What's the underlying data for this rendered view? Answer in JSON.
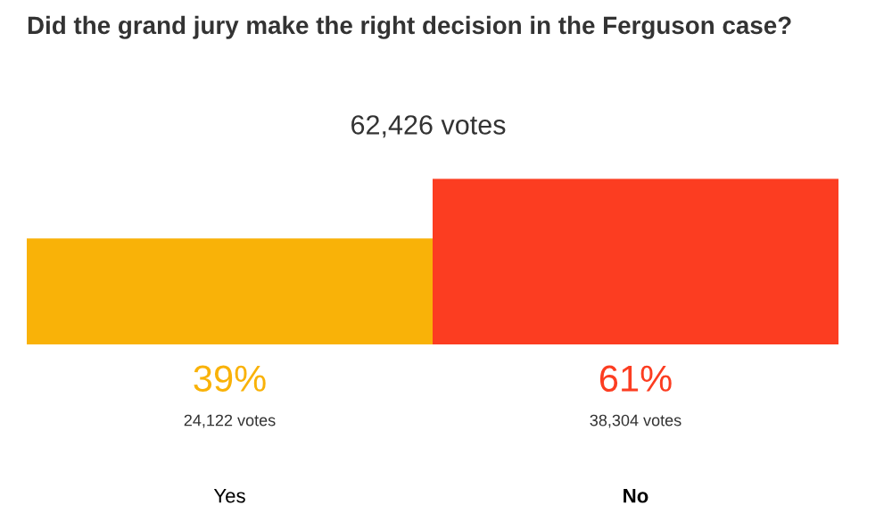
{
  "chart_data": {
    "type": "bar",
    "title": "Did the grand jury make the right decision in the Ferguson case?",
    "subtitle": "62,426 votes",
    "categories": [
      "Yes",
      "No"
    ],
    "values": [
      39,
      61
    ],
    "colors": [
      "#f9b208",
      "#fc3d21"
    ],
    "value_labels": [
      "39%",
      "61%"
    ],
    "annotations": [
      "24,122 votes",
      "38,304 votes"
    ],
    "grid": false,
    "legend": false
  }
}
